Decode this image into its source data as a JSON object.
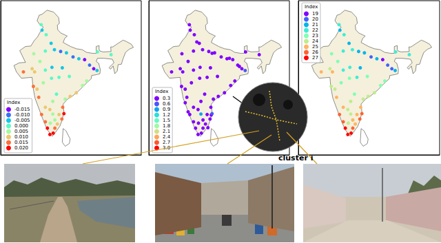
{
  "chart_data": [
    {
      "type": "scatter",
      "marker": "circle",
      "legend": "lower left",
      "legend_title": "Index",
      "tick_labels": false,
      "xlim": [
        65,
        99
      ],
      "ylim": [
        4,
        38
      ],
      "series": [
        {
          "name": "-0.015",
          "color": "#8000ff",
          "values": [
            [
              85.3,
              25.0
            ],
            [
              87.5,
              23.0
            ]
          ]
        },
        {
          "name": "-0.010",
          "color": "#3770f9",
          "values": [
            [
              82.5,
              25.6
            ],
            [
              86.5,
              23.8
            ],
            [
              79.5,
              26.8
            ]
          ]
        },
        {
          "name": "-0.005",
          "color": "#12c7e6",
          "values": [
            [
              77.2,
              28.6
            ],
            [
              78.0,
              27.2
            ],
            [
              80.9,
              26.5
            ],
            [
              83.9,
              25.2
            ],
            [
              88.3,
              22.6
            ],
            [
              75.0,
              31.5
            ],
            [
              77.4,
              23.3
            ],
            [
              79.9,
              23.2
            ]
          ]
        },
        {
          "name": "0.000",
          "color": "#5bf9c7",
          "values": [
            [
              76.0,
              30.5
            ],
            [
              74.8,
              32.7
            ],
            [
              75.8,
              26.9
            ],
            [
              75.8,
              22.7
            ],
            [
              77.3,
              20.9
            ],
            [
              79.1,
              21.1
            ],
            [
              78.5,
              17.4
            ],
            [
              91.7,
              26.1
            ],
            [
              88.4,
              26.7
            ],
            [
              81.6,
              21.3
            ]
          ]
        },
        {
          "name": "0.005",
          "color": "#a4f99f",
          "values": [
            [
              73.0,
              26.3
            ],
            [
              74.5,
              24.6
            ],
            [
              75.3,
              19.9
            ],
            [
              85.8,
              20.3
            ],
            [
              84.8,
              19.3
            ],
            [
              77.6,
              15.8
            ],
            [
              77.6,
              13.0
            ],
            [
              77.0,
              11.0
            ],
            [
              78.1,
              11.7
            ],
            [
              80.6,
              16.3
            ]
          ]
        },
        {
          "name": "0.010",
          "color": "#edc76f",
          "values": [
            [
              72.6,
              23.0
            ],
            [
              73.2,
              22.3
            ],
            [
              73.8,
              18.5
            ],
            [
              83.3,
              17.7
            ],
            [
              81.8,
              16.9
            ],
            [
              76.9,
              14.0
            ],
            [
              75.8,
              14.5
            ],
            [
              78.7,
              10.8
            ],
            [
              79.1,
              12.9
            ]
          ]
        },
        {
          "name": "0.015",
          "color": "#ff6f39",
          "values": [
            [
              70.5,
              22.3
            ],
            [
              72.9,
              19.1
            ],
            [
              74.2,
              16.7
            ],
            [
              80.0,
              14.5
            ],
            [
              74.9,
              12.9
            ],
            [
              75.8,
              11.3
            ],
            [
              78.1,
              9.9
            ],
            [
              79.8,
              11.9
            ]
          ]
        },
        {
          "name": "0.020",
          "color": "#ff0000",
          "values": [
            [
              80.3,
              13.1
            ],
            [
              76.3,
              9.9
            ],
            [
              76.9,
              8.5
            ],
            [
              77.7,
              8.8
            ]
          ]
        }
      ]
    },
    {
      "type": "scatter",
      "marker": "circle",
      "legend": "lower left",
      "legend_title": "Index",
      "tick_labels": false,
      "xlim": [
        65,
        99
      ],
      "ylim": [
        4,
        38
      ],
      "annotations": [
        "cluster i"
      ],
      "series": [
        {
          "name": "0.3",
          "color": "#8000ff",
          "values": [
            [
              77.2,
              28.6
            ],
            [
              78.0,
              27.2
            ],
            [
              79.5,
              26.8
            ],
            [
              80.9,
              26.5
            ],
            [
              82.5,
              25.6
            ],
            [
              83.9,
              25.2
            ],
            [
              85.3,
              25.0
            ],
            [
              86.5,
              23.8
            ],
            [
              87.5,
              23.0
            ],
            [
              76.0,
              30.5
            ],
            [
              75.0,
              31.5
            ],
            [
              74.8,
              32.7
            ],
            [
              75.8,
              26.9
            ],
            [
              73.0,
              26.3
            ],
            [
              72.6,
              23.0
            ],
            [
              70.5,
              22.3
            ],
            [
              73.2,
              22.3
            ],
            [
              74.5,
              24.6
            ],
            [
              77.4,
              23.3
            ],
            [
              75.8,
              22.7
            ],
            [
              79.9,
              23.2
            ],
            [
              81.6,
              21.3
            ],
            [
              72.9,
              19.1
            ],
            [
              73.8,
              18.5
            ],
            [
              75.3,
              19.9
            ],
            [
              77.3,
              20.9
            ],
            [
              79.1,
              21.1
            ],
            [
              74.2,
              16.7
            ],
            [
              85.8,
              20.3
            ],
            [
              84.8,
              19.3
            ],
            [
              83.3,
              17.7
            ],
            [
              81.8,
              16.9
            ],
            [
              80.6,
              16.3
            ],
            [
              80.0,
              14.5
            ],
            [
              78.5,
              17.4
            ],
            [
              77.6,
              15.8
            ],
            [
              76.9,
              14.0
            ],
            [
              75.8,
              14.5
            ],
            [
              74.9,
              12.9
            ],
            [
              75.8,
              11.3
            ],
            [
              76.3,
              9.9
            ],
            [
              76.9,
              8.5
            ],
            [
              77.0,
              11.0
            ],
            [
              78.1,
              9.9
            ],
            [
              78.7,
              10.8
            ],
            [
              79.8,
              11.9
            ],
            [
              78.1,
              11.7
            ],
            [
              79.1,
              12.9
            ],
            [
              77.7,
              8.8
            ],
            [
              91.7,
              26.1
            ],
            [
              88.4,
              26.7
            ],
            [
              76.6,
              28.9
            ],
            [
              80.3,
              26.4
            ],
            [
              84.5,
              25.3
            ],
            [
              86.9,
              23.5
            ],
            [
              73.8,
              15.5
            ],
            [
              74.5,
              13.5
            ],
            [
              79.3,
              10.0
            ],
            [
              80.1,
              12.8
            ]
          ]
        },
        {
          "name": "0.6",
          "color": "#4757fb",
          "values": [
            [
              88.3,
              22.6
            ],
            [
              80.3,
              13.1
            ]
          ]
        },
        {
          "name": "0.9",
          "color": "#0ea4f0",
          "values": [
            [
              77.6,
              13.0
            ]
          ]
        },
        {
          "name": "1.2",
          "color": "#2bdddd",
          "values": []
        },
        {
          "name": "1.5",
          "color": "#63fbc3",
          "values": []
        },
        {
          "name": "1.8",
          "color": "#9cfba4",
          "values": []
        },
        {
          "name": "2.1",
          "color": "#d4dd80",
          "values": []
        },
        {
          "name": "2.4",
          "color": "#ffa457",
          "values": []
        },
        {
          "name": "2.7",
          "color": "#ff572c",
          "values": []
        },
        {
          "name": "3.0",
          "color": "#ff0000",
          "values": []
        }
      ]
    },
    {
      "type": "scatter",
      "marker": "circle",
      "legend": "upper left",
      "legend_title": "Index",
      "tick_labels": false,
      "xlim": [
        65,
        99
      ],
      "ylim": [
        4,
        38
      ],
      "series": [
        {
          "name": "19",
          "color": "#8000ff",
          "values": [
            [
              85.3,
              25.0
            ]
          ]
        },
        {
          "name": "20",
          "color": "#4062fa",
          "values": [
            [
              82.5,
              25.6
            ],
            [
              87.5,
              23.0
            ],
            [
              86.5,
              23.8
            ]
          ]
        },
        {
          "name": "21",
          "color": "#00b5ec",
          "values": [
            [
              77.2,
              28.6
            ],
            [
              79.5,
              26.8
            ],
            [
              80.9,
              26.5
            ],
            [
              83.9,
              25.2
            ],
            [
              88.3,
              22.6
            ],
            [
              75.0,
              31.5
            ],
            [
              79.9,
              23.2
            ]
          ]
        },
        {
          "name": "22",
          "color": "#40ecd4",
          "values": [
            [
              78.0,
              27.2
            ],
            [
              76.0,
              30.5
            ],
            [
              74.8,
              32.7
            ],
            [
              75.8,
              26.9
            ],
            [
              77.4,
              23.3
            ],
            [
              75.8,
              22.7
            ],
            [
              79.1,
              21.1
            ],
            [
              91.7,
              26.1
            ],
            [
              88.4,
              26.7
            ]
          ]
        },
        {
          "name": "23",
          "color": "#80ffb4",
          "values": [
            [
              81.6,
              21.3
            ],
            [
              75.3,
              19.9
            ],
            [
              77.3,
              20.9
            ],
            [
              85.8,
              20.3
            ],
            [
              84.8,
              19.3
            ],
            [
              78.5,
              17.4
            ],
            [
              74.5,
              24.6
            ],
            [
              73.0,
              26.3
            ]
          ]
        },
        {
          "name": "24",
          "color": "#c0ec8e",
          "values": [
            [
              72.6,
              23.0
            ],
            [
              72.9,
              19.1
            ],
            [
              73.8,
              18.5
            ],
            [
              83.3,
              17.7
            ],
            [
              81.8,
              16.9
            ],
            [
              80.6,
              16.3
            ],
            [
              77.6,
              15.8
            ],
            [
              76.9,
              14.0
            ],
            [
              77.6,
              13.0
            ],
            [
              77.0,
              11.0
            ]
          ]
        },
        {
          "name": "25",
          "color": "#ffb462",
          "values": [
            [
              70.5,
              22.3
            ],
            [
              73.2,
              22.3
            ],
            [
              74.2,
              16.7
            ],
            [
              80.0,
              14.5
            ],
            [
              75.8,
              14.5
            ],
            [
              78.1,
              11.7
            ],
            [
              79.1,
              12.9
            ],
            [
              78.7,
              10.8
            ]
          ]
        },
        {
          "name": "26",
          "color": "#ff6232",
          "values": [
            [
              80.3,
              13.1
            ],
            [
              74.9,
              12.9
            ],
            [
              78.1,
              9.9
            ],
            [
              79.8,
              11.9
            ],
            [
              75.8,
              11.3
            ]
          ]
        },
        {
          "name": "27",
          "color": "#ff0000",
          "values": [
            [
              76.3,
              9.9
            ],
            [
              76.9,
              8.5
            ],
            [
              77.7,
              8.8
            ]
          ]
        }
      ]
    }
  ]
}
